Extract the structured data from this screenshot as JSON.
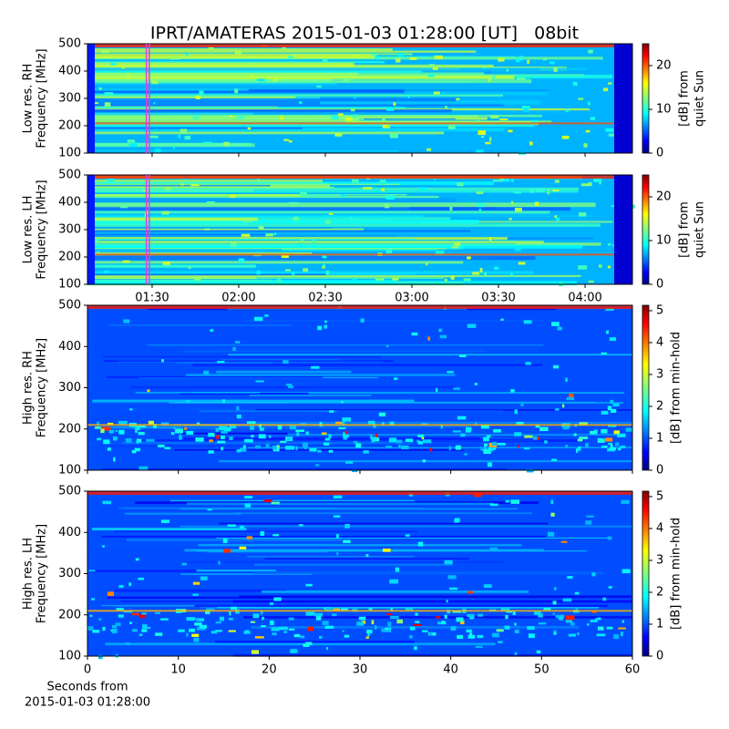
{
  "title": "IPRT/AMATERAS 2015-01-03 01:28:00 [UT]   08bit",
  "chart_data": [
    {
      "type": "heatmap",
      "ylabel": [
        "Low res. RH",
        "Frequency [MHz]"
      ],
      "ylim": [
        100,
        500
      ],
      "yticks": [
        100,
        200,
        300,
        400,
        500
      ],
      "xlim": [
        67.6,
        256.4
      ],
      "colormap": "jet",
      "marker_range": [
        88,
        89
      ],
      "marker_color": "#e040e0",
      "colorbar": {
        "label": [
          "[dB] from",
          "quiet Sun"
        ],
        "clim": [
          0,
          25
        ],
        "ticks": [
          0,
          10,
          20
        ]
      }
    },
    {
      "type": "heatmap",
      "ylabel": [
        "Low res. LH",
        "Frequency [MHz]"
      ],
      "ylim": [
        100,
        500
      ],
      "yticks": [
        100,
        200,
        300,
        400,
        500
      ],
      "xlim": [
        67.6,
        256.4
      ],
      "colormap": "jet",
      "marker_range": [
        88,
        89
      ],
      "marker_color": "#e040e0",
      "xticks": [
        {
          "value": 90,
          "label": "01:30"
        },
        {
          "value": 120,
          "label": "02:00"
        },
        {
          "value": 150,
          "label": "02:30"
        },
        {
          "value": 180,
          "label": "03:00"
        },
        {
          "value": 210,
          "label": "03:30"
        },
        {
          "value": 240,
          "label": "04:00"
        }
      ],
      "colorbar": {
        "label": [
          "[dB] from",
          "quiet Sun"
        ],
        "clim": [
          0,
          25
        ],
        "ticks": [
          0,
          10,
          20
        ]
      }
    },
    {
      "type": "heatmap",
      "ylabel": [
        "High res. RH",
        "Frequency [MHz]"
      ],
      "ylim": [
        100,
        500
      ],
      "yticks": [
        100,
        200,
        300,
        400,
        500
      ],
      "xlim": [
        0,
        60
      ],
      "colormap": "jet",
      "colorbar": {
        "label": [
          "[dB] from min-hold"
        ],
        "clim": [
          0,
          5.17
        ],
        "ticks": [
          0,
          1,
          2,
          3,
          4,
          5
        ]
      }
    },
    {
      "type": "heatmap",
      "ylabel": [
        "High res. LH",
        "Frequency [MHz]"
      ],
      "ylim": [
        100,
        500
      ],
      "yticks": [
        100,
        200,
        300,
        400,
        500
      ],
      "xlim": [
        0,
        60
      ],
      "colormap": "jet",
      "xticks": [
        0,
        10,
        20,
        30,
        40,
        50,
        60
      ],
      "xlabel": [
        "Seconds from",
        "2015-01-03 01:28:00"
      ],
      "colorbar": {
        "label": [
          "[dB] from min-hold"
        ],
        "clim": [
          0,
          5.17
        ],
        "ticks": [
          0,
          1,
          2,
          3,
          4,
          5
        ]
      }
    }
  ]
}
